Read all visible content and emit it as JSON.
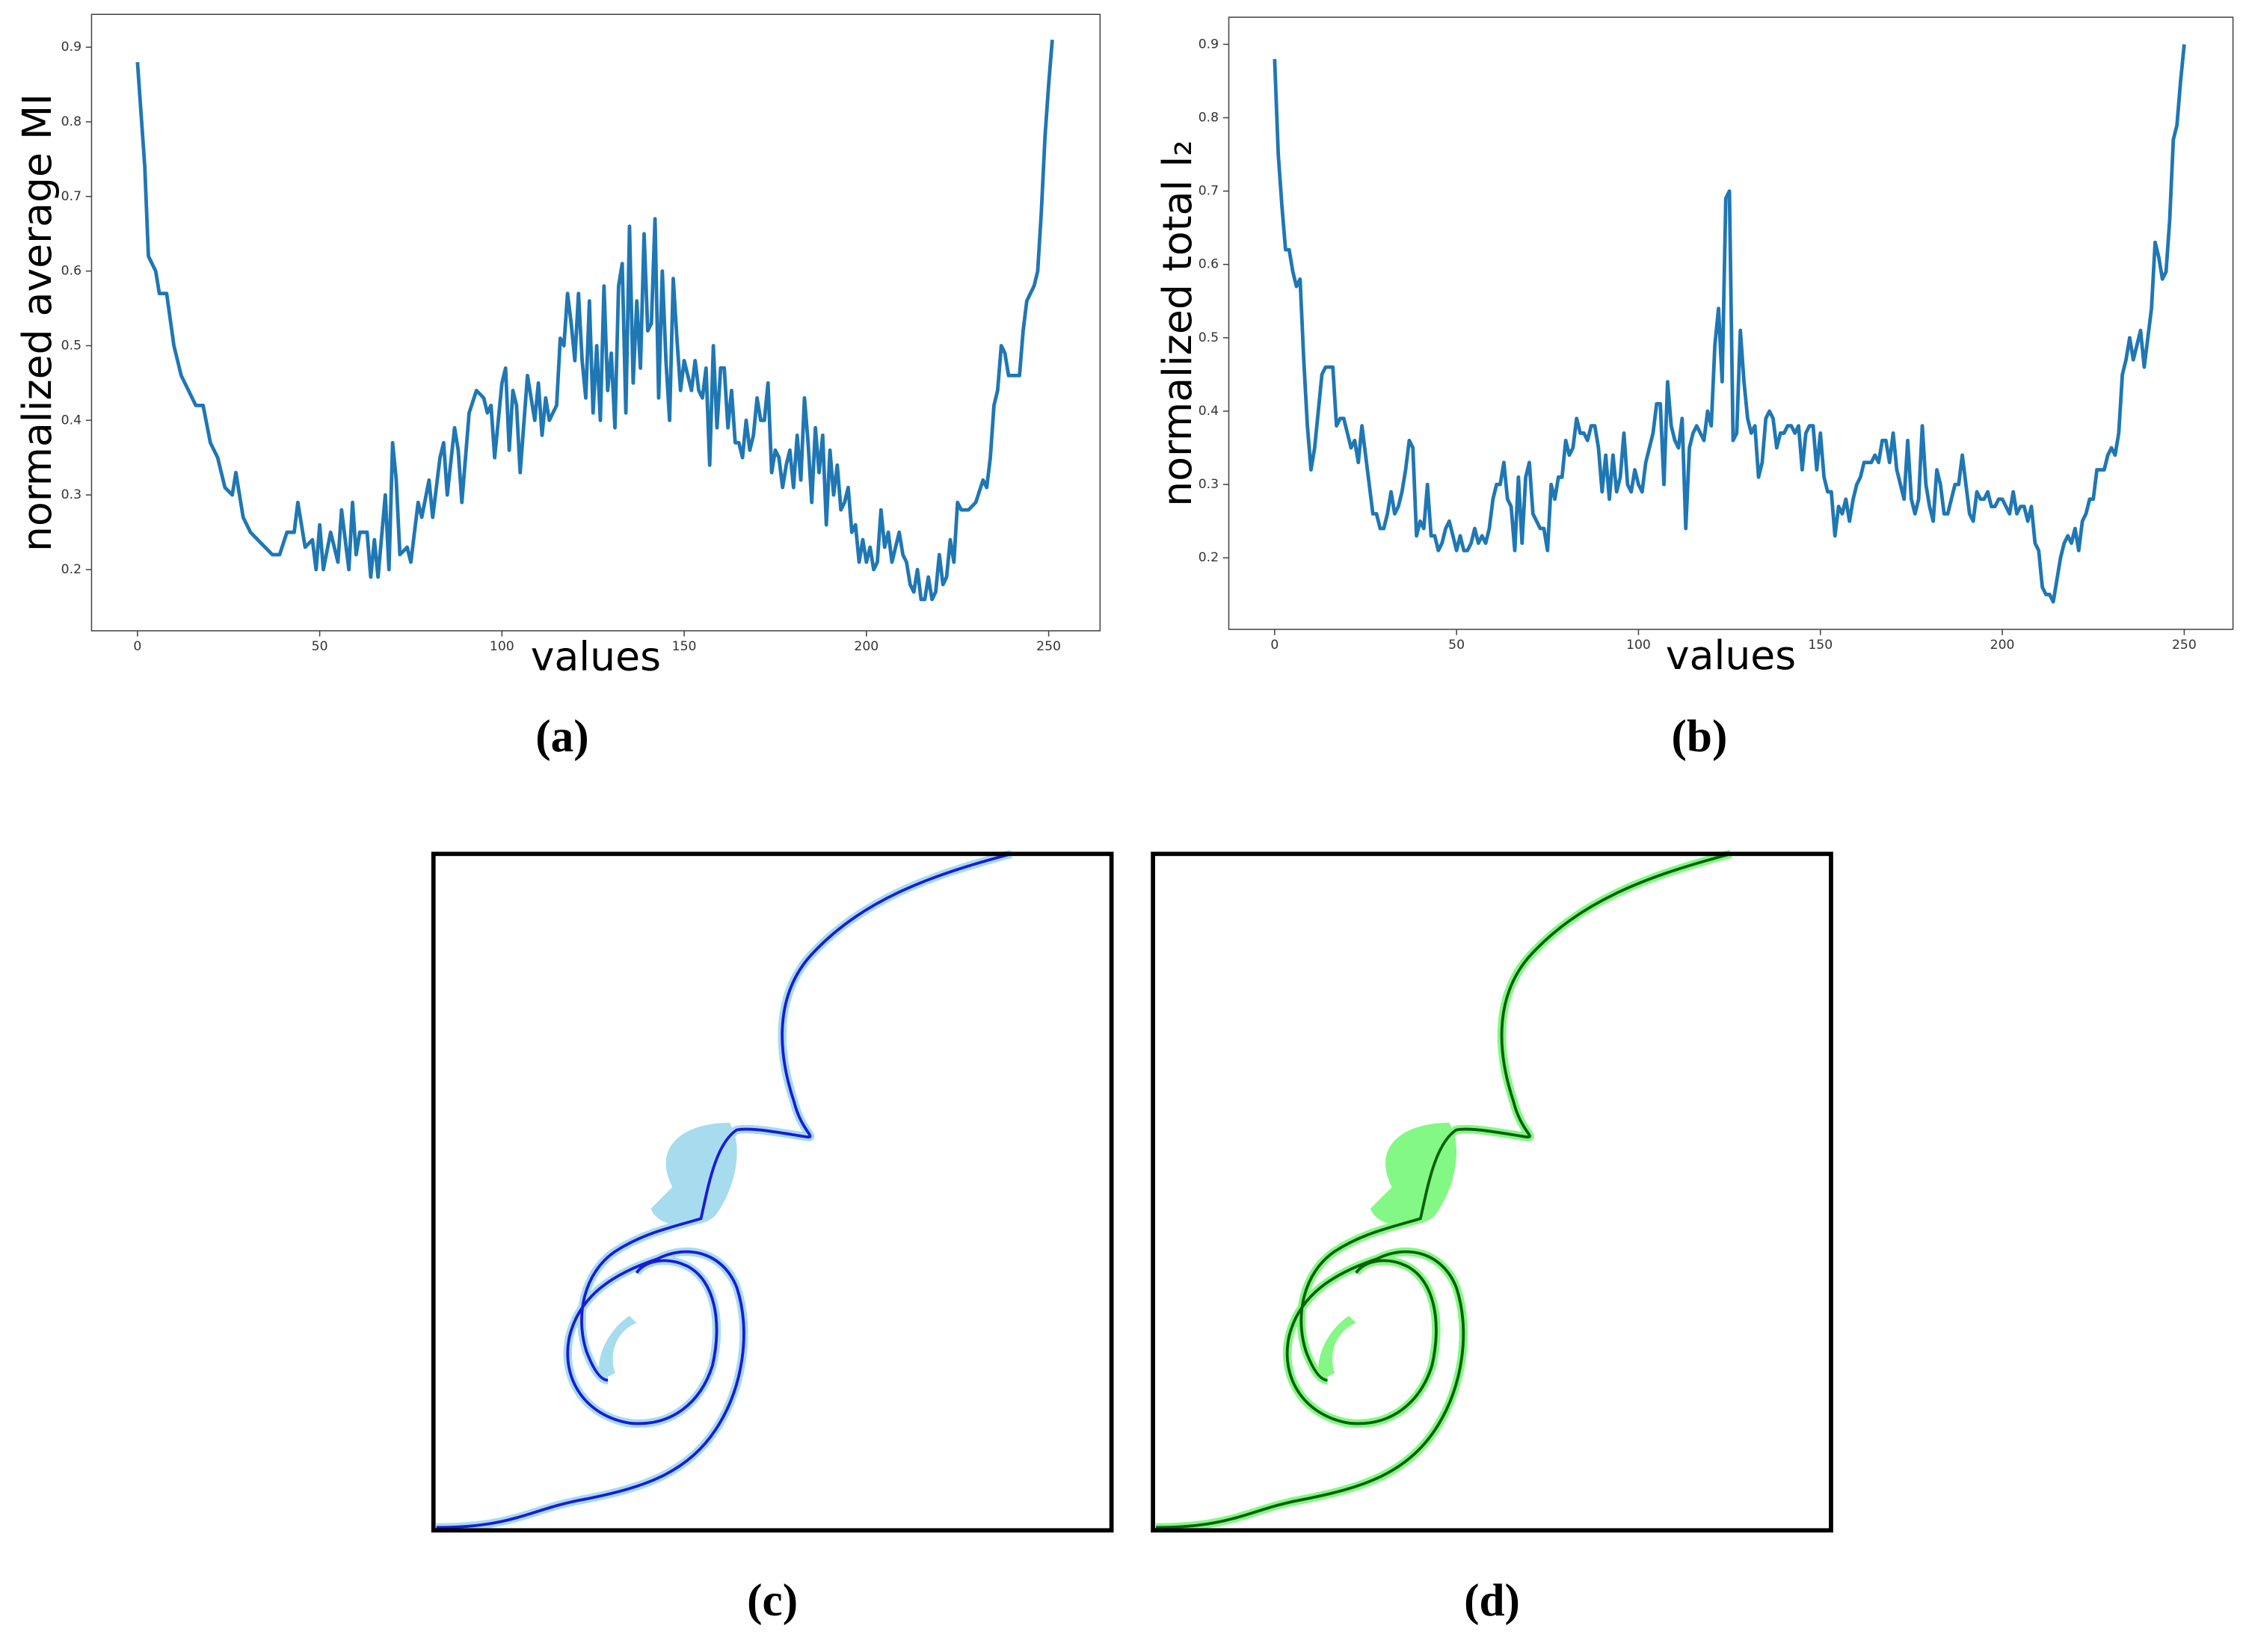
{
  "chart_data": [
    {
      "type": "line",
      "xlabel": "values",
      "ylabel": "normalized average MI",
      "xlim": [
        -12.6,
        264.1
      ],
      "ylim": [
        0.118,
        0.944
      ],
      "xticks": [
        0,
        50,
        100,
        150,
        200,
        250
      ],
      "yticks": [
        0.2,
        0.3,
        0.4,
        0.5,
        0.6,
        0.7,
        0.8,
        0.9
      ],
      "series": [
        {
          "color": "#1f77b4",
          "x": [
            0,
            2,
            3,
            5,
            6,
            8,
            10,
            12,
            14,
            16,
            18,
            20,
            22,
            24,
            26,
            27,
            29,
            31,
            33,
            35,
            37,
            39,
            41,
            43,
            44,
            46,
            48,
            49,
            50,
            51,
            53,
            55,
            56,
            58,
            59,
            60,
            61,
            63,
            64,
            65,
            66,
            68,
            69,
            70,
            71,
            72,
            74,
            75,
            77,
            78,
            80,
            81,
            83,
            84,
            85,
            87,
            88,
            89,
            91,
            93,
            95,
            96,
            97,
            98,
            100,
            101,
            102,
            103,
            104,
            105,
            107,
            108,
            109,
            110,
            111,
            112,
            113,
            115,
            116,
            117,
            118,
            119,
            120,
            121,
            122,
            123,
            124,
            125,
            126,
            127,
            128,
            129,
            130,
            131,
            132,
            133,
            134,
            135,
            136,
            137,
            138,
            139,
            140,
            141,
            142,
            143,
            144,
            145,
            146,
            147,
            148,
            149,
            150,
            151,
            152,
            153,
            154,
            155,
            156,
            157,
            158,
            159,
            160,
            161,
            162,
            163,
            164,
            165,
            166,
            167,
            168,
            169,
            170,
            171,
            172,
            173,
            174,
            175,
            176,
            177,
            178,
            179,
            180,
            181,
            182,
            183,
            184,
            185,
            186,
            187,
            188,
            189,
            190,
            191,
            192,
            193,
            194,
            195,
            196,
            197,
            198,
            199,
            200,
            201,
            202,
            203,
            204,
            205,
            206,
            207,
            208,
            209,
            210,
            211,
            212,
            213,
            214,
            215,
            216,
            217,
            218,
            219,
            220,
            221,
            222,
            223,
            224,
            225,
            226,
            228,
            230,
            232,
            233,
            234,
            235,
            236,
            237,
            238,
            239,
            241,
            242,
            243,
            244,
            245,
            246,
            247,
            248,
            249,
            250,
            251
          ],
          "values": [
            0.88,
            0.74,
            0.62,
            0.6,
            0.57,
            0.57,
            0.5,
            0.46,
            0.44,
            0.42,
            0.42,
            0.37,
            0.35,
            0.31,
            0.3,
            0.33,
            0.27,
            0.25,
            0.24,
            0.23,
            0.22,
            0.22,
            0.25,
            0.25,
            0.29,
            0.23,
            0.24,
            0.2,
            0.26,
            0.2,
            0.25,
            0.21,
            0.28,
            0.2,
            0.29,
            0.22,
            0.25,
            0.25,
            0.19,
            0.24,
            0.19,
            0.3,
            0.2,
            0.37,
            0.32,
            0.22,
            0.23,
            0.21,
            0.29,
            0.27,
            0.32,
            0.27,
            0.35,
            0.37,
            0.3,
            0.39,
            0.36,
            0.29,
            0.41,
            0.44,
            0.43,
            0.41,
            0.42,
            0.35,
            0.45,
            0.47,
            0.36,
            0.44,
            0.42,
            0.33,
            0.46,
            0.43,
            0.4,
            0.45,
            0.38,
            0.43,
            0.4,
            0.42,
            0.51,
            0.5,
            0.57,
            0.53,
            0.48,
            0.57,
            0.48,
            0.43,
            0.56,
            0.41,
            0.5,
            0.4,
            0.58,
            0.44,
            0.49,
            0.39,
            0.58,
            0.61,
            0.41,
            0.66,
            0.45,
            0.56,
            0.47,
            0.65,
            0.52,
            0.53,
            0.67,
            0.43,
            0.6,
            0.48,
            0.4,
            0.59,
            0.51,
            0.44,
            0.48,
            0.46,
            0.44,
            0.48,
            0.44,
            0.43,
            0.47,
            0.34,
            0.5,
            0.39,
            0.47,
            0.47,
            0.39,
            0.44,
            0.37,
            0.37,
            0.35,
            0.4,
            0.36,
            0.38,
            0.43,
            0.4,
            0.4,
            0.45,
            0.33,
            0.36,
            0.35,
            0.31,
            0.34,
            0.36,
            0.31,
            0.38,
            0.32,
            0.43,
            0.37,
            0.29,
            0.39,
            0.33,
            0.38,
            0.26,
            0.36,
            0.3,
            0.34,
            0.28,
            0.29,
            0.31,
            0.25,
            0.26,
            0.21,
            0.24,
            0.21,
            0.23,
            0.2,
            0.21,
            0.28,
            0.23,
            0.25,
            0.21,
            0.23,
            0.25,
            0.22,
            0.21,
            0.18,
            0.17,
            0.2,
            0.16,
            0.16,
            0.19,
            0.16,
            0.17,
            0.22,
            0.18,
            0.19,
            0.24,
            0.21,
            0.29,
            0.28,
            0.28,
            0.29,
            0.32,
            0.31,
            0.35,
            0.42,
            0.44,
            0.5,
            0.49,
            0.46,
            0.46,
            0.46,
            0.52,
            0.56,
            0.57,
            0.58,
            0.6,
            0.68,
            0.78,
            0.85,
            0.91
          ]
        }
      ]
    },
    {
      "type": "line",
      "xlabel": "values",
      "ylabel": "normalized total l₂",
      "xlim": [
        -12.6,
        263.4
      ],
      "ylim": [
        0.1025,
        0.937
      ],
      "xticks": [
        0,
        50,
        100,
        150,
        200,
        250
      ],
      "yticks": [
        0.2,
        0.3,
        0.4,
        0.5,
        0.6,
        0.7,
        0.8,
        0.9
      ],
      "series": [
        {
          "color": "#1f77b4",
          "x": [
            0,
            1,
            2,
            3,
            4,
            5,
            6,
            7,
            8,
            9,
            10,
            11,
            12,
            13,
            14,
            15,
            16,
            17,
            18,
            19,
            20,
            21,
            22,
            23,
            24,
            25,
            26,
            27,
            28,
            29,
            30,
            31,
            32,
            33,
            34,
            35,
            36,
            37,
            38,
            39,
            40,
            41,
            42,
            43,
            44,
            45,
            46,
            47,
            48,
            49,
            50,
            51,
            52,
            53,
            54,
            55,
            56,
            57,
            58,
            59,
            60,
            61,
            62,
            63,
            64,
            65,
            66,
            67,
            68,
            69,
            70,
            71,
            72,
            73,
            74,
            75,
            76,
            77,
            78,
            79,
            80,
            81,
            82,
            83,
            84,
            85,
            86,
            87,
            88,
            89,
            90,
            91,
            92,
            93,
            94,
            95,
            96,
            97,
            98,
            99,
            100,
            101,
            102,
            103,
            104,
            105,
            106,
            107,
            108,
            109,
            110,
            111,
            112,
            113,
            114,
            115,
            116,
            117,
            118,
            119,
            120,
            121,
            122,
            123,
            124,
            125,
            126,
            127,
            128,
            129,
            130,
            131,
            132,
            133,
            134,
            135,
            136,
            137,
            138,
            139,
            140,
            141,
            142,
            143,
            144,
            145,
            146,
            147,
            148,
            149,
            150,
            151,
            152,
            153,
            154,
            155,
            156,
            157,
            158,
            159,
            160,
            161,
            162,
            163,
            164,
            165,
            166,
            167,
            168,
            169,
            170,
            171,
            172,
            173,
            174,
            175,
            176,
            177,
            178,
            179,
            180,
            181,
            182,
            183,
            184,
            185,
            186,
            187,
            188,
            189,
            190,
            191,
            192,
            193,
            194,
            195,
            196,
            197,
            198,
            199,
            200,
            201,
            202,
            203,
            204,
            205,
            206,
            207,
            208,
            209,
            210,
            211,
            212,
            213,
            214,
            215,
            216,
            217,
            218,
            219,
            220,
            221,
            222,
            223,
            224,
            225,
            226,
            227,
            228,
            229,
            230,
            231,
            232,
            233,
            234,
            235,
            236,
            237,
            238,
            239,
            240,
            241,
            242,
            243,
            244,
            245,
            246,
            247,
            248,
            249,
            250
          ],
          "values": [
            0.88,
            0.75,
            0.68,
            0.62,
            0.62,
            0.59,
            0.57,
            0.58,
            0.47,
            0.38,
            0.32,
            0.35,
            0.4,
            0.45,
            0.46,
            0.46,
            0.46,
            0.38,
            0.39,
            0.39,
            0.37,
            0.35,
            0.36,
            0.33,
            0.38,
            0.34,
            0.3,
            0.26,
            0.26,
            0.24,
            0.24,
            0.26,
            0.29,
            0.26,
            0.27,
            0.29,
            0.32,
            0.36,
            0.35,
            0.23,
            0.25,
            0.24,
            0.3,
            0.23,
            0.23,
            0.21,
            0.22,
            0.24,
            0.25,
            0.23,
            0.21,
            0.23,
            0.21,
            0.21,
            0.22,
            0.24,
            0.22,
            0.23,
            0.22,
            0.24,
            0.28,
            0.3,
            0.3,
            0.33,
            0.28,
            0.27,
            0.21,
            0.31,
            0.22,
            0.31,
            0.33,
            0.26,
            0.25,
            0.24,
            0.24,
            0.21,
            0.3,
            0.28,
            0.31,
            0.31,
            0.36,
            0.34,
            0.35,
            0.39,
            0.37,
            0.37,
            0.36,
            0.38,
            0.38,
            0.35,
            0.29,
            0.34,
            0.28,
            0.34,
            0.29,
            0.31,
            0.37,
            0.3,
            0.29,
            0.32,
            0.3,
            0.29,
            0.33,
            0.35,
            0.37,
            0.41,
            0.41,
            0.3,
            0.44,
            0.38,
            0.36,
            0.35,
            0.39,
            0.24,
            0.35,
            0.37,
            0.38,
            0.37,
            0.36,
            0.4,
            0.38,
            0.49,
            0.54,
            0.44,
            0.69,
            0.7,
            0.36,
            0.37,
            0.51,
            0.44,
            0.39,
            0.37,
            0.38,
            0.31,
            0.33,
            0.39,
            0.4,
            0.39,
            0.35,
            0.37,
            0.37,
            0.38,
            0.38,
            0.37,
            0.38,
            0.32,
            0.37,
            0.38,
            0.38,
            0.32,
            0.37,
            0.31,
            0.29,
            0.29,
            0.23,
            0.27,
            0.26,
            0.28,
            0.25,
            0.28,
            0.3,
            0.31,
            0.33,
            0.33,
            0.33,
            0.34,
            0.33,
            0.36,
            0.36,
            0.33,
            0.37,
            0.32,
            0.3,
            0.28,
            0.36,
            0.28,
            0.26,
            0.28,
            0.38,
            0.3,
            0.27,
            0.25,
            0.32,
            0.3,
            0.26,
            0.26,
            0.28,
            0.3,
            0.3,
            0.34,
            0.3,
            0.26,
            0.25,
            0.29,
            0.28,
            0.28,
            0.29,
            0.27,
            0.27,
            0.28,
            0.28,
            0.27,
            0.26,
            0.29,
            0.26,
            0.27,
            0.27,
            0.25,
            0.27,
            0.22,
            0.21,
            0.16,
            0.15,
            0.15,
            0.14,
            0.17,
            0.2,
            0.22,
            0.23,
            0.22,
            0.24,
            0.21,
            0.25,
            0.26,
            0.28,
            0.28,
            0.32,
            0.32,
            0.32,
            0.34,
            0.35,
            0.34,
            0.37,
            0.45,
            0.47,
            0.5,
            0.47,
            0.49,
            0.51,
            0.46,
            0.5,
            0.54,
            0.63,
            0.61,
            0.58,
            0.59,
            0.66,
            0.77,
            0.79,
            0.85,
            0.9
          ]
        }
      ]
    }
  ],
  "captions": [
    "(a)",
    "(b)",
    "(c)",
    "(d)"
  ]
}
